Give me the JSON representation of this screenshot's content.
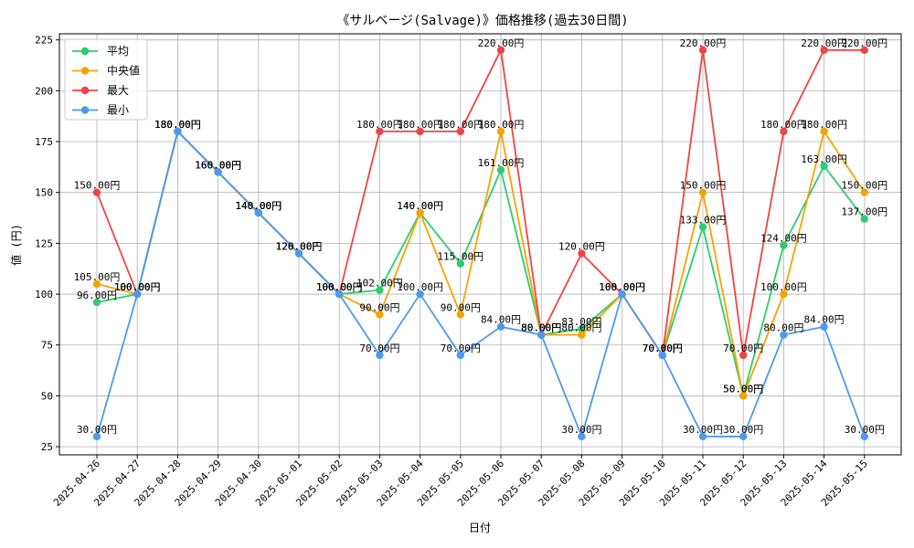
{
  "chart_data": {
    "type": "line",
    "title": "《サルベージ(Salvage)》価格推移(過去30日間)",
    "xlabel": "日付",
    "ylabel": "値 (円)",
    "ylim": [
      21,
      228
    ],
    "yticks": [
      25,
      50,
      75,
      100,
      125,
      150,
      175,
      200,
      225
    ],
    "grid": true,
    "legend_position": "top-left",
    "label_suffix": "円",
    "categories": [
      "2025-04-26",
      "2025-04-27",
      "2025-04-28",
      "2025-04-29",
      "2025-04-30",
      "2025-05-01",
      "2025-05-02",
      "2025-05-03",
      "2025-05-04",
      "2025-05-05",
      "2025-05-06",
      "2025-05-07",
      "2025-05-08",
      "2025-05-09",
      "2025-05-10",
      "2025-05-11",
      "2025-05-12",
      "2025-05-13",
      "2025-05-14",
      "2025-05-15"
    ],
    "series": [
      {
        "name": "平均",
        "color": "#2ecc71",
        "values": [
          96,
          100,
          180,
          160,
          140,
          120,
          100,
          102,
          140,
          115,
          161,
          80,
          83,
          100,
          70,
          133,
          50,
          124,
          163,
          137
        ]
      },
      {
        "name": "中央値",
        "color": "#f5a300",
        "values": [
          105,
          100,
          180,
          160,
          140,
          120,
          100,
          90,
          140,
          90,
          180,
          80,
          80,
          100,
          70,
          150,
          50,
          100,
          180,
          150
        ]
      },
      {
        "name": "最大",
        "color": "#ef4444",
        "values": [
          150,
          100,
          180,
          160,
          140,
          120,
          100,
          180,
          180,
          180,
          220,
          80,
          120,
          100,
          70,
          220,
          70,
          180,
          220,
          220
        ]
      },
      {
        "name": "最小",
        "color": "#4a9af0",
        "values": [
          30,
          100,
          180,
          160,
          140,
          120,
          100,
          70,
          100,
          70,
          84,
          80,
          30,
          100,
          70,
          30,
          30,
          80,
          84,
          30
        ]
      }
    ]
  }
}
